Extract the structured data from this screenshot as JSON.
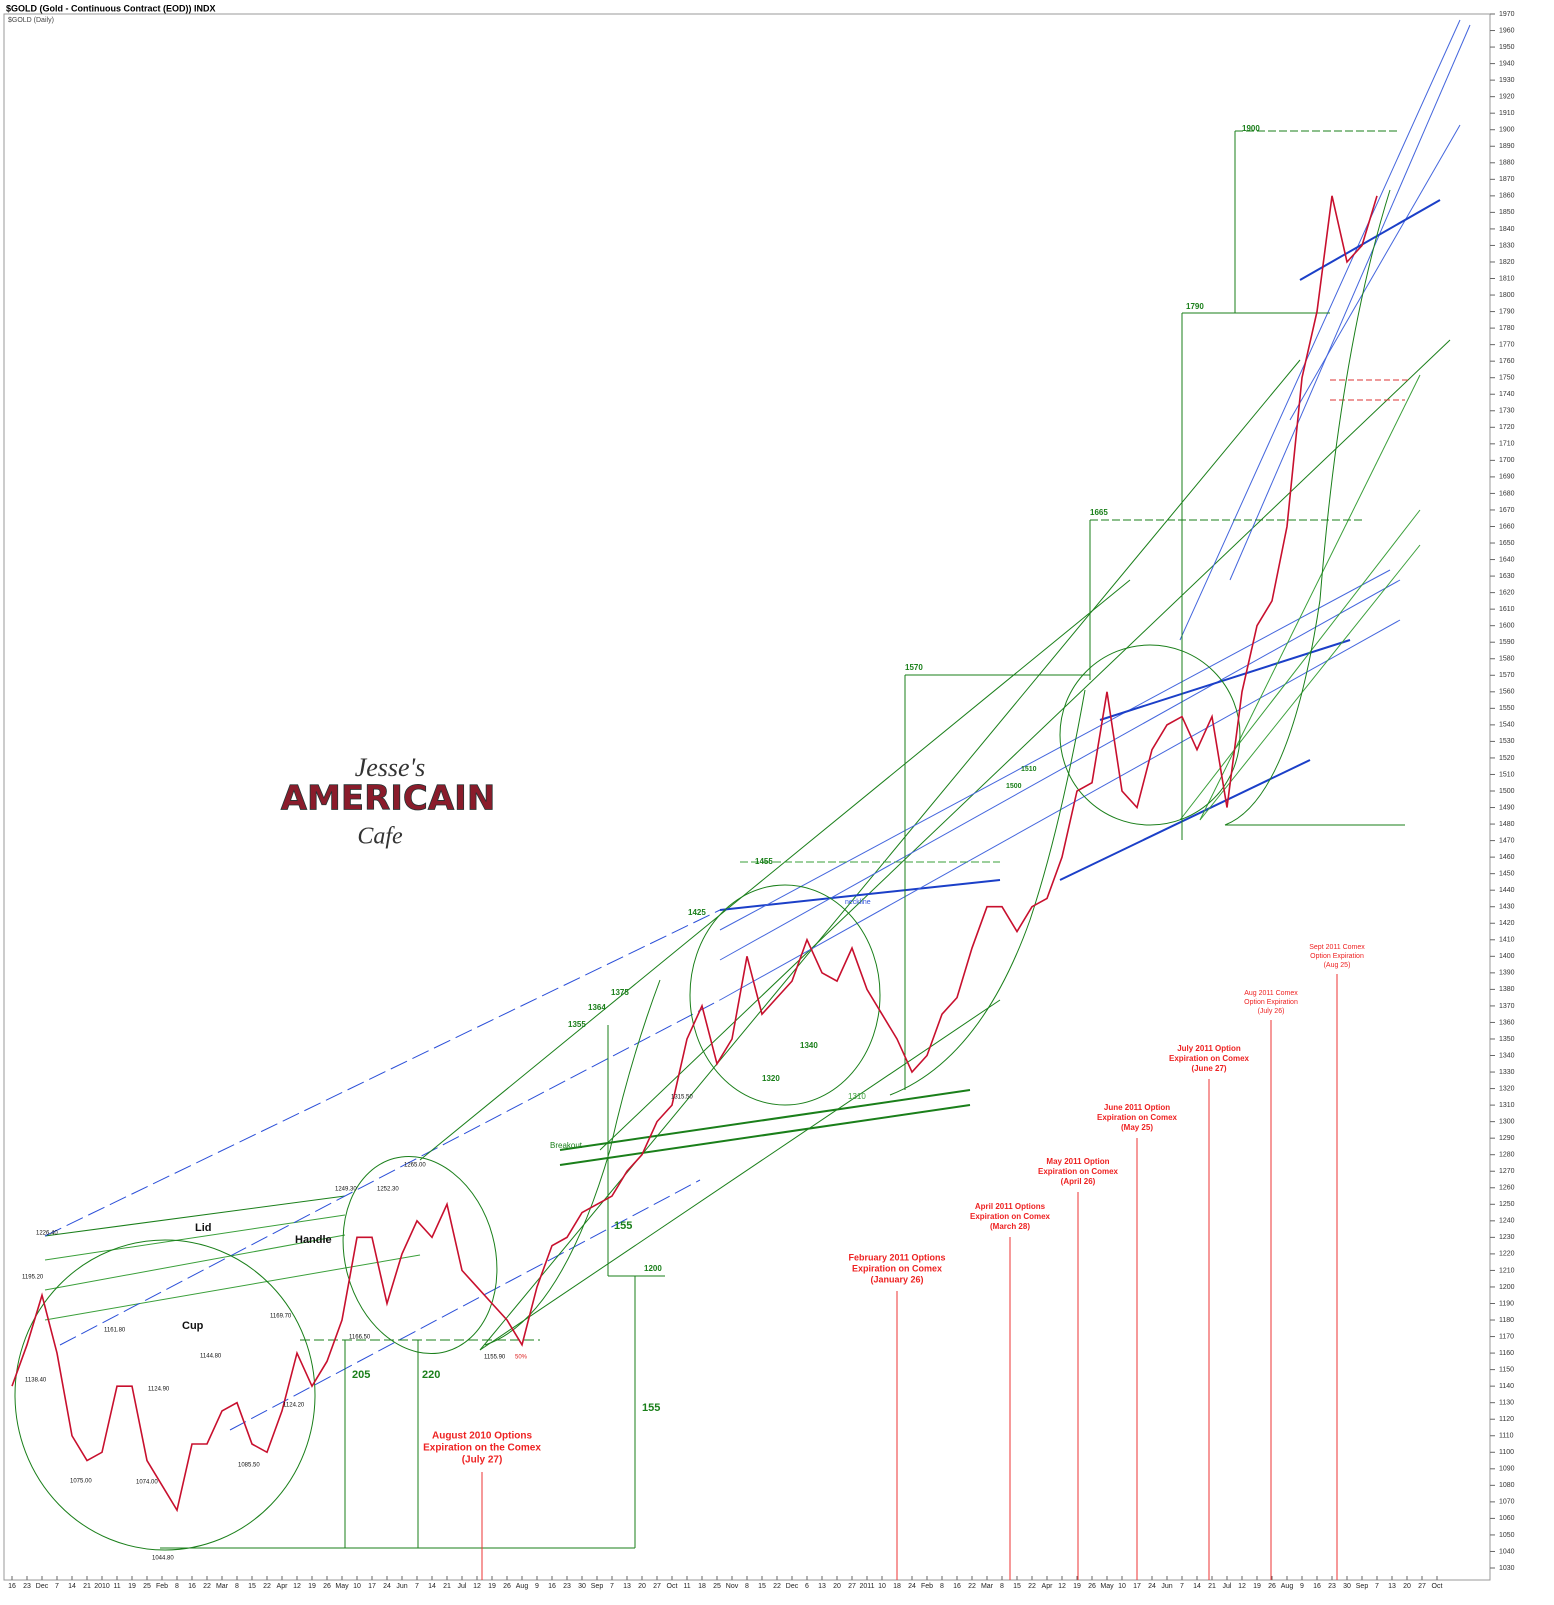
{
  "chart_data": {
    "type": "line",
    "title": "$GOLD (Gold - Continuous Contract (EOD)) INDX",
    "subtitle": "$GOLD (Daily)",
    "logo": [
      "Jesse's",
      "AMERICAIN",
      "Cafe"
    ],
    "categories": [
      "16",
      "23",
      "Dec",
      "7",
      "14",
      "21",
      "2010",
      "11",
      "19",
      "25",
      "Feb",
      "8",
      "16",
      "22",
      "Mar",
      "8",
      "15",
      "22",
      "Apr",
      "12",
      "19",
      "26",
      "May",
      "10",
      "17",
      "24",
      "Jun",
      "7",
      "14",
      "21",
      "Jul",
      "12",
      "19",
      "26",
      "Aug",
      "9",
      "16",
      "23",
      "30",
      "Sep",
      "7",
      "13",
      "20",
      "27",
      "Oct",
      "11",
      "18",
      "25",
      "Nov",
      "8",
      "15",
      "22",
      "Dec",
      "6",
      "13",
      "20",
      "27",
      "2011",
      "10",
      "18",
      "24",
      "Feb",
      "8",
      "16",
      "22",
      "Mar",
      "8",
      "15",
      "22",
      "Apr",
      "12",
      "19",
      "26",
      "May",
      "10",
      "17",
      "24",
      "Jun",
      "7",
      "14",
      "21",
      "Jul",
      "12",
      "19",
      "26",
      "Aug",
      "9",
      "16",
      "23",
      "30",
      "Sep",
      "7",
      "13",
      "20",
      "27",
      "Oct"
    ],
    "series": [
      {
        "name": "$GOLD",
        "color": "#c8102e",
        "values": [
          1140,
          1165,
          1195,
          1160,
          1110,
          1095,
          1100,
          1140,
          1140,
          1095,
          1080,
          1065,
          1105,
          1105,
          1125,
          1130,
          1105,
          1100,
          1125,
          1160,
          1140,
          1155,
          1180,
          1230,
          1230,
          1190,
          1220,
          1240,
          1230,
          1250,
          1210,
          1200,
          1190,
          1180,
          1165,
          1200,
          1225,
          1230,
          1245,
          1250,
          1255,
          1270,
          1280,
          1300,
          1310,
          1350,
          1370,
          1335,
          1350,
          1400,
          1365,
          1375,
          1385,
          1410,
          1390,
          1385,
          1405,
          1380,
          1365,
          1350,
          1330,
          1340,
          1365,
          1375,
          1405,
          1430,
          1430,
          1415,
          1430,
          1435,
          1460,
          1500,
          1505,
          1560,
          1500,
          1490,
          1525,
          1540,
          1545,
          1525,
          1545,
          1490,
          1560,
          1600,
          1615,
          1660,
          1750,
          1790,
          1860,
          1820,
          1830,
          1860,
          null,
          null,
          null,
          null
        ]
      }
    ],
    "ylim": [
      1030,
      1970
    ],
    "yticks": [
      1030,
      1040,
      1050,
      1060,
      1070,
      1080,
      1090,
      1100,
      1110,
      1120,
      1130,
      1140,
      1150,
      1160,
      1170,
      1180,
      1190,
      1200,
      1210,
      1220,
      1230,
      1240,
      1250,
      1260,
      1270,
      1280,
      1290,
      1300,
      1310,
      1320,
      1330,
      1340,
      1350,
      1360,
      1370,
      1380,
      1390,
      1400,
      1410,
      1420,
      1430,
      1440,
      1450,
      1460,
      1470,
      1480,
      1490,
      1500,
      1510,
      1520,
      1530,
      1540,
      1550,
      1560,
      1570,
      1580,
      1590,
      1600,
      1610,
      1620,
      1630,
      1640,
      1650,
      1660,
      1670,
      1680,
      1690,
      1700,
      1710,
      1720,
      1730,
      1740,
      1750,
      1760,
      1770,
      1780,
      1790,
      1800,
      1810,
      1820,
      1830,
      1840,
      1850,
      1860,
      1870,
      1880,
      1890,
      1900,
      1910,
      1920,
      1930,
      1940,
      1950,
      1960,
      1970
    ],
    "annotations": [
      "Lid",
      "Handle",
      "Cup",
      "Breakout",
      "neckline",
      "1226.40",
      "1195.20",
      "1138.40",
      "1161.80",
      "1075.00",
      "1074.00",
      "1044.80",
      "1124.90",
      "1144.80",
      "1085.50",
      "1169.70",
      "1124.20",
      "1249.30",
      "1252.30",
      "1265.00",
      "1166.50",
      "1155.90",
      "50%",
      "205",
      "220",
      "155",
      "155",
      "1200",
      "1315.50",
      "1355",
      "1364",
      "1375",
      "1425",
      "1455",
      "1570",
      "1665",
      "1790",
      "1900",
      "1340",
      "1320",
      "1310",
      "1510",
      "1500"
    ],
    "expirations": [
      [
        "August 2010 Options",
        "Expiration on the Comex",
        "(July 27)"
      ],
      [
        "February 2011 Options",
        "Expiration on Comex",
        "(January 26)"
      ],
      [
        "April 2011 Options",
        "Expiration on Comex",
        "(March 28)"
      ],
      [
        "May 2011 Option",
        "Expiration on Comex",
        "(April 26)"
      ],
      [
        "June 2011 Option",
        "Expiration on Comex",
        "(May 25)"
      ],
      [
        "July 2011 Option",
        "Expiration on Comex",
        "(June 27)"
      ],
      [
        "Aug 2011 Comex",
        "Option Expiration",
        "(July 26)"
      ],
      [
        "Sept 2011 Comex",
        "Option Expiration",
        "(Aug 25)"
      ]
    ]
  }
}
